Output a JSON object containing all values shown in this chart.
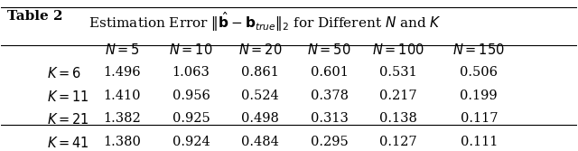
{
  "title_bold": "Table 2",
  "title_normal": "   Estimation Error $\\|\\hat{\\mathbf{b}} - \\mathbf{b}_{true}\\|_2$ for Different $N$ and $K$",
  "col_headers": [
    "$N=5$",
    "$N=10$",
    "$N=20$",
    "$N=50$",
    "$N=100$",
    "$N=150$"
  ],
  "row_headers": [
    "$K=6$",
    "$K=11$",
    "$K=21$",
    "$K=41$"
  ],
  "data": [
    [
      "1.496",
      "1.063",
      "0.861",
      "0.601",
      "0.531",
      "0.506"
    ],
    [
      "1.410",
      "0.956",
      "0.524",
      "0.378",
      "0.217",
      "0.199"
    ],
    [
      "1.382",
      "0.925",
      "0.498",
      "0.313",
      "0.138",
      "0.117"
    ],
    [
      "1.380",
      "0.924",
      "0.484",
      "0.295",
      "0.127",
      "0.111"
    ]
  ],
  "bg_color": "#ffffff",
  "text_color": "#000000",
  "font_size": 10.5,
  "header_font_size": 10.5,
  "title_font_size": 11.0
}
